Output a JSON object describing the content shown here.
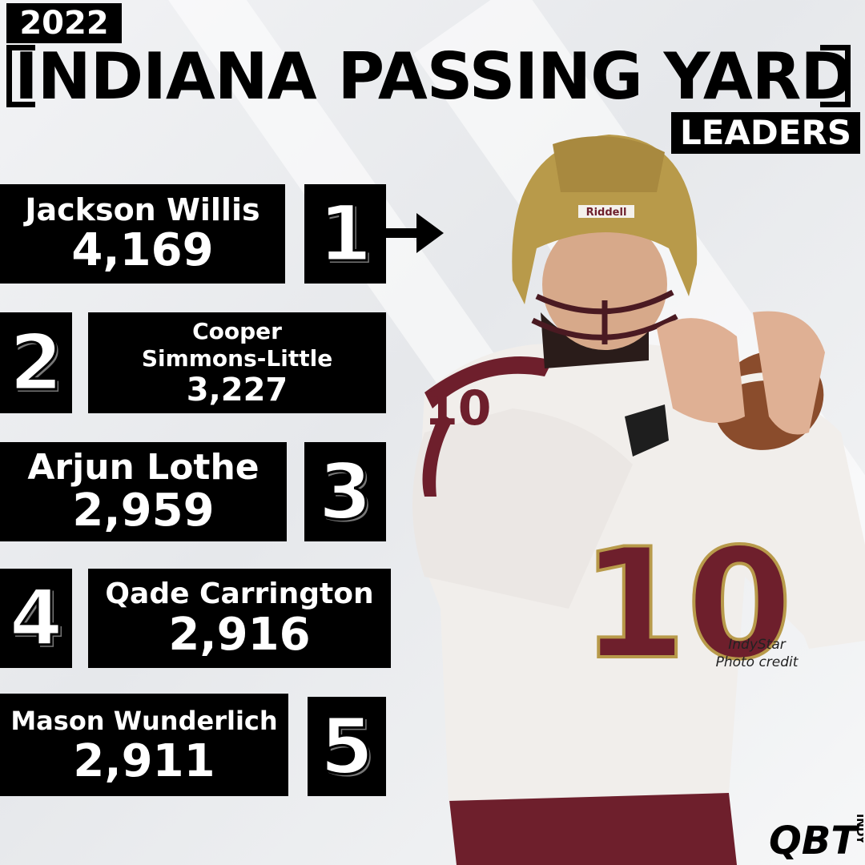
{
  "header": {
    "year": "2022",
    "title": "INDIANA PASSING YARD",
    "subtitle": "LEADERS"
  },
  "leaders": [
    {
      "rank": "1",
      "name": "Jackson Willis",
      "yards": "4,169"
    },
    {
      "rank": "2",
      "name_line1": "Cooper",
      "name_line2": "Simmons-Little",
      "yards": "3,227"
    },
    {
      "rank": "3",
      "name": "Arjun Lothe",
      "yards": "2,959"
    },
    {
      "rank": "4",
      "name": "Qade Carrington",
      "yards": "2,916"
    },
    {
      "rank": "5",
      "name": "Mason Wunderlich",
      "yards": "2,911"
    }
  ],
  "photo": {
    "jersey_number": "10",
    "helmet_brand": "Riddell",
    "credit_line1": "IndyStar",
    "credit_line2": "Photo credit"
  },
  "branding": {
    "logo_text": "QBT",
    "logo_sub": "INDY"
  },
  "colors": {
    "black": "#000000",
    "maroon": "#6e1f2c",
    "gold": "#b89a4a"
  }
}
